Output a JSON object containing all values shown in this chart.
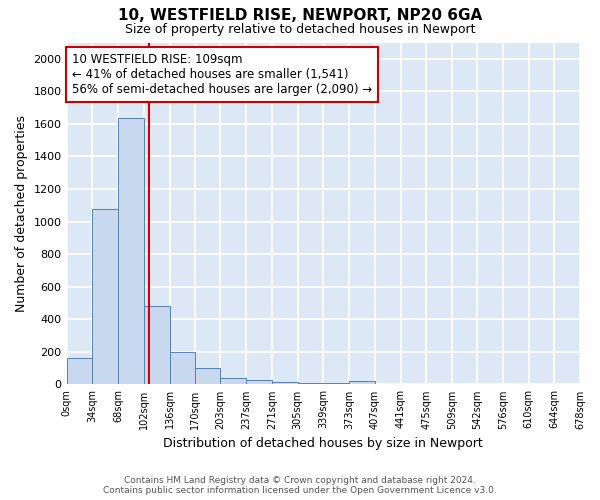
{
  "title1": "10, WESTFIELD RISE, NEWPORT, NP20 6GA",
  "title2": "Size of property relative to detached houses in Newport",
  "xlabel": "Distribution of detached houses by size in Newport",
  "ylabel": "Number of detached properties",
  "bin_edges": [
    0,
    34,
    68,
    102,
    136,
    170,
    203,
    237,
    271,
    305,
    339,
    373,
    407,
    441,
    475,
    509,
    542,
    576,
    610,
    644,
    678
  ],
  "bar_heights": [
    165,
    1080,
    1635,
    480,
    200,
    100,
    40,
    25,
    15,
    10,
    10,
    20,
    0,
    0,
    0,
    0,
    0,
    0,
    0,
    0
  ],
  "bar_color": "#c8d8ee",
  "bar_edge_color": "#5580b0",
  "red_line_x": 109,
  "red_line_color": "#cc0000",
  "annotation_text": "10 WESTFIELD RISE: 109sqm\n← 41% of detached houses are smaller (1,541)\n56% of semi-detached houses are larger (2,090) →",
  "annotation_box_color": "#ffffff",
  "annotation_box_edge_color": "#cc0000",
  "ylim": [
    0,
    2100
  ],
  "yticks": [
    0,
    200,
    400,
    600,
    800,
    1000,
    1200,
    1400,
    1600,
    1800,
    2000
  ],
  "plot_bg_color": "#dce8f5",
  "fig_bg_color": "#ffffff",
  "grid_color": "#ffffff",
  "footer1": "Contains HM Land Registry data © Crown copyright and database right 2024.",
  "footer2": "Contains public sector information licensed under the Open Government Licence v3.0."
}
